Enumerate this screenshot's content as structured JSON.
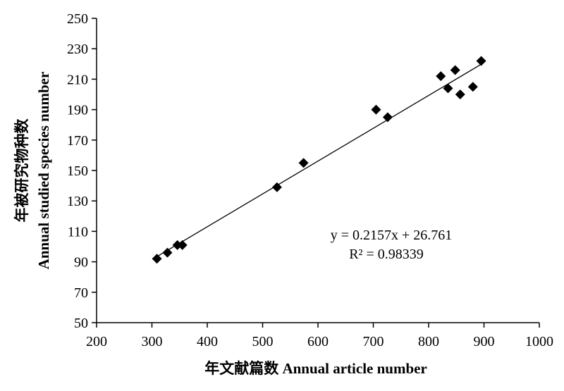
{
  "chart_data": {
    "type": "scatter",
    "xlabel": "年文献篇数  Annual article number",
    "ylabel_line1": "年被研究物种数",
    "ylabel_line2": "Annual studied species number",
    "xlim": [
      200,
      1000
    ],
    "ylim": [
      50,
      250
    ],
    "x_ticks": [
      200,
      300,
      400,
      500,
      600,
      700,
      800,
      900,
      1000
    ],
    "y_ticks": [
      50,
      70,
      90,
      110,
      130,
      150,
      170,
      190,
      210,
      230,
      250
    ],
    "grid": false,
    "marker": "diamond",
    "marker_color": "#000000",
    "points": [
      {
        "x": 309,
        "y": 92
      },
      {
        "x": 328,
        "y": 96
      },
      {
        "x": 346,
        "y": 101
      },
      {
        "x": 355,
        "y": 101
      },
      {
        "x": 526,
        "y": 139
      },
      {
        "x": 574,
        "y": 155
      },
      {
        "x": 705,
        "y": 190
      },
      {
        "x": 726,
        "y": 185
      },
      {
        "x": 822,
        "y": 212
      },
      {
        "x": 835,
        "y": 204
      },
      {
        "x": 848,
        "y": 216
      },
      {
        "x": 857,
        "y": 200
      },
      {
        "x": 880,
        "y": 205
      },
      {
        "x": 895,
        "y": 222
      }
    ],
    "trendline": {
      "slope": 0.2157,
      "intercept": 26.761,
      "x_range": [
        309,
        895
      ]
    },
    "annotation_equation": "y = 0.2157x + 26.761",
    "annotation_r2": "R² = 0.98339"
  }
}
